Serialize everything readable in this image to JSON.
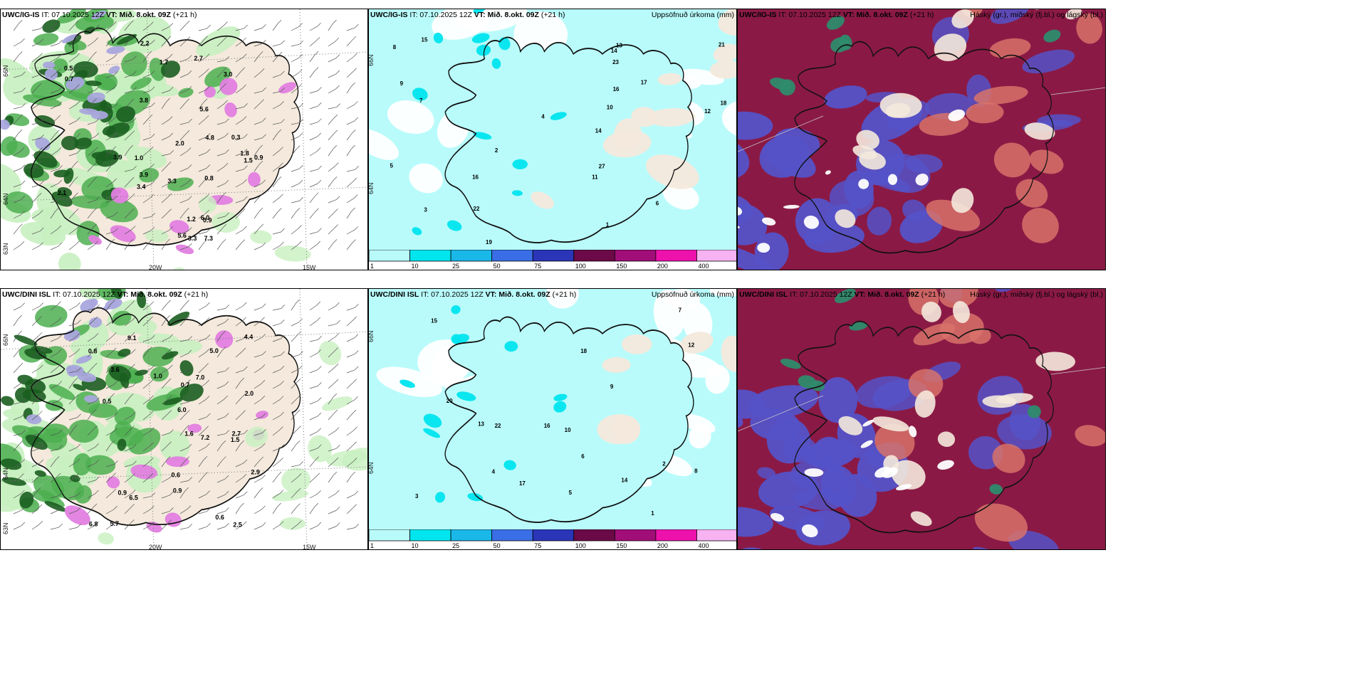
{
  "panels": [
    {
      "id": "ig-wind",
      "header": {
        "model": "UWC/IG-IS",
        "it": "IT: 07.10.2025 12Z",
        "vt_label": "VT:",
        "vt": "Mið. 8.okt. 09Z",
        "lead": "(+21 h)"
      }
    },
    {
      "id": "ig-precip",
      "header": {
        "model": "UWC/IG-IS",
        "it": "IT: 07.10.2025 12Z",
        "vt_label": "VT:",
        "vt": "Mið. 8.okt. 09Z",
        "lead": "(+21 h)"
      },
      "right_title": "Uppsöfnuð úrkoma (mm)"
    },
    {
      "id": "ig-cloud",
      "header": {
        "model": "UWC/IG-IS",
        "it": "IT: 07.10.2025 12Z",
        "vt_label": "VT:",
        "vt": "Mið. 8.okt. 09Z",
        "lead": "(+21 h)"
      },
      "right_title": "Háský (gr.), miðský (fj.bl.) og lágský (bl.)"
    },
    {
      "id": "dini-wind",
      "header": {
        "model": "UWC/DINI ISL",
        "it": "IT: 07.10.2025 12Z",
        "vt_label": "VT:",
        "vt": "Mið. 8.okt. 09Z",
        "lead": "(+21 h)"
      }
    },
    {
      "id": "dini-precip",
      "header": {
        "model": "UWC/DINI ISL",
        "it": "IT: 07.10.2025 12Z",
        "vt_label": "VT:",
        "vt": "Mið. 8.okt. 09Z",
        "lead": "(+21 h)"
      },
      "right_title": "Uppsöfnuð úrkoma (mm)"
    },
    {
      "id": "dini-cloud",
      "header": {
        "model": "UWC/DINI ISL",
        "it": "IT: 07.10.2025 12Z",
        "vt_label": "VT:",
        "vt": "Mið. 8.okt. 09Z",
        "lead": "(+21 h)"
      },
      "right_title": "Háský (gr.), miðský (fj.bl.) og lágský (bl.)"
    }
  ],
  "axis_labels": {
    "lon_20": "20W",
    "lon_15": "15W",
    "lat_66": "66N",
    "lat_64": "64N",
    "lat_63": "63N"
  },
  "colorbar": {
    "labels": [
      "1",
      "10",
      "25",
      "50",
      "75",
      "100",
      "150",
      "200",
      "400"
    ],
    "colors": [
      "#b9fbfb",
      "#00e5ee",
      "#1ab8e8",
      "#3a6ee6",
      "#2a35b8",
      "#6b0a46",
      "#a10e78",
      "#ee12ad",
      "#f7b2f2"
    ]
  },
  "colors": {
    "land": "#f4e9dc",
    "green_dark": "#1b5e20",
    "green_mid": "#4caf50",
    "green_light": "#c8f0c0",
    "purple": "#e27fe0",
    "lav": "#a9a7dd",
    "cyan_light": "#b9fbfb",
    "cyan": "#00e5ee",
    "maroon": "#8a1a45",
    "blue_cloud": "#5552c8",
    "salmon": "#d7726a",
    "teal": "#2e8b6b"
  },
  "values": {
    "ig_wind": [
      "0.9",
      "5.6",
      "3.8",
      "1.7",
      "1.2",
      "2.2",
      "3.4",
      "1.8",
      "3.9",
      "7.3",
      "5.6",
      "4.8",
      "3.0",
      "1.0",
      "6.0",
      "2.1",
      "3.9",
      "2.7",
      "3.3",
      "0.8",
      "0.9",
      "0.5",
      "0.7",
      "1.5",
      "3.3",
      "2.0",
      "0.3"
    ],
    "ig_precip": [
      "2",
      "6",
      "22",
      "16",
      "15",
      "19",
      "14",
      "12",
      "10",
      "17",
      "23",
      "16",
      "18",
      "11",
      "13",
      "14",
      "7",
      "8",
      "3",
      "4",
      "5",
      "1",
      "9",
      "21",
      "27"
    ],
    "dini_wind": [
      "6.8",
      "1.6",
      "0.9",
      "5.7",
      "2.9",
      "6.0",
      "6.5",
      "7.2",
      "0.8",
      "0.6",
      "0.5",
      "0.7",
      "1.5",
      "2.7",
      "3.6",
      "4.4",
      "2.0",
      "1.0",
      "0.9",
      "5.0",
      "0.6",
      "9.1",
      "7.0",
      "2.5"
    ],
    "dini_precip": [
      "3",
      "10",
      "13",
      "16",
      "18",
      "15",
      "20",
      "17",
      "7",
      "5",
      "4",
      "2",
      "12",
      "9",
      "22",
      "6",
      "1",
      "14",
      "8"
    ]
  }
}
